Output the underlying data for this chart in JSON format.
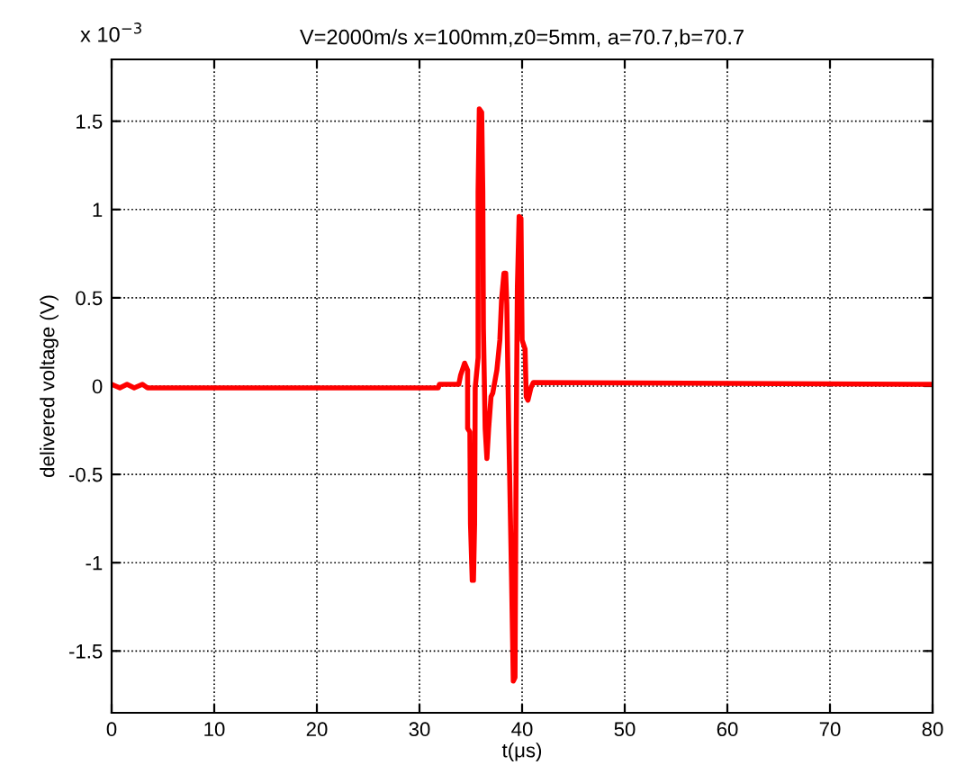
{
  "chart_data": {
    "type": "line",
    "title": "V=2000m/s x=100mm,z0=5mm, a=70.7,b=70.7",
    "xlabel": "t(μs)",
    "ylabel": "delivered voltage (V)",
    "annotations": [
      "x 10$^{−3}$"
    ],
    "series": [
      {
        "color": "#ff0000",
        "x": [
          0,
          0.8,
          1.5,
          2.2,
          3,
          3.5,
          31.83,
          31.94,
          33.83,
          34.0,
          34.4,
          34.69,
          34.69,
          34.91,
          34.97,
          35.14,
          35.26,
          35.37,
          35.43,
          35.71,
          35.71,
          35.83,
          36.06,
          36.17,
          36.23,
          36.4,
          36.57,
          36.74,
          36.97,
          37.14,
          37.54,
          37.83,
          38.0,
          38.23,
          38.4,
          38.51,
          38.69,
          38.97,
          39.14,
          39.31,
          39.43,
          39.54,
          39.71,
          39.89,
          40.0,
          40.29,
          40.4,
          40.57,
          40.86,
          41.09,
          80
        ],
        "values": [
          0.01,
          -0.01,
          0.01,
          -0.01,
          0.01,
          -0.01,
          -0.01,
          0.01,
          0.01,
          0.06,
          0.13,
          0.09,
          -0.24,
          -0.26,
          -0.78,
          -1.1,
          -1.1,
          -0.78,
          -0.01,
          0.16,
          1.1,
          1.57,
          1.55,
          1.1,
          0.33,
          -0.24,
          -0.41,
          -0.24,
          -0.06,
          -0.04,
          0.09,
          0.26,
          0.49,
          0.64,
          0.64,
          0.46,
          -0.21,
          -1.08,
          -1.67,
          -1.65,
          -0.24,
          0.56,
          0.96,
          0.95,
          0.26,
          0.21,
          -0.06,
          -0.08,
          -0.01,
          0.02,
          0.01
        ]
      }
    ],
    "xlim": [
      0,
      80
    ],
    "xticks": [
      0,
      10,
      20,
      30,
      40,
      50,
      60,
      70,
      80
    ],
    "ylim": [
      -1.85,
      1.85
    ],
    "yticks": [
      -1.5,
      -1,
      -0.5,
      0,
      0.5,
      1,
      1.5
    ],
    "grid": true,
    "line_style": "solid",
    "marker": "none"
  }
}
